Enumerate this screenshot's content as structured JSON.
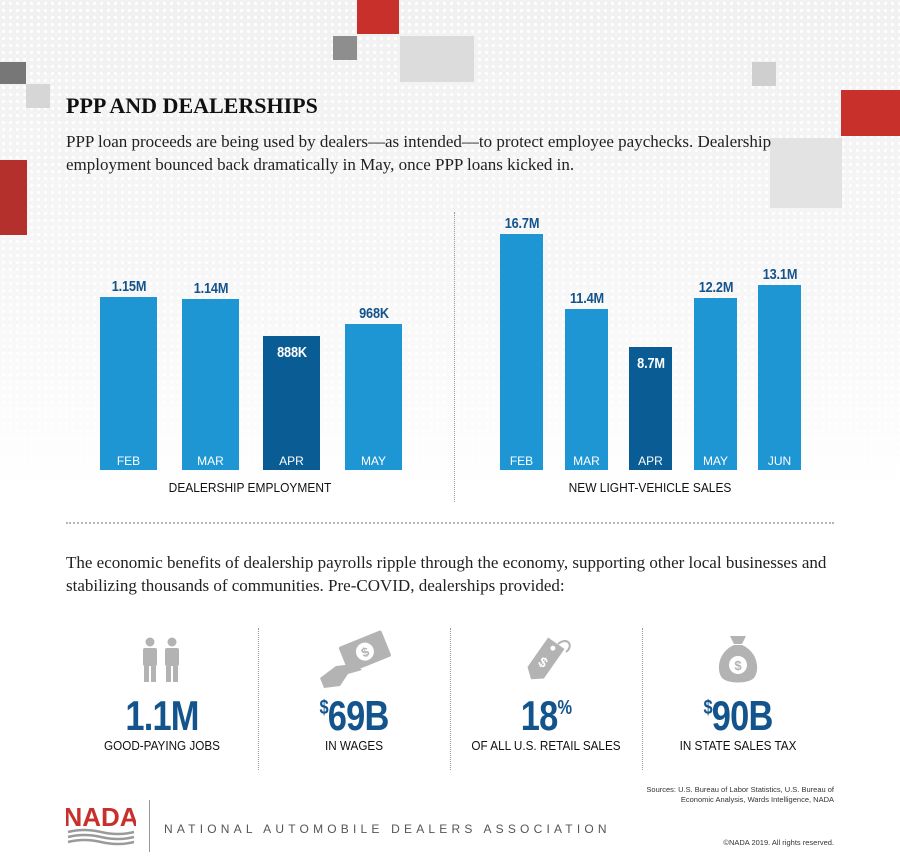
{
  "header": {
    "title": "PPP AND DEALERSHIPS",
    "subtitle": "PPP loan proceeds are being used by dealers—as intended—to protect employee paychecks. Dealership employment bounced back dramatically in May, once PPP loans kicked in."
  },
  "colors": {
    "bar": "#1e96d3",
    "bar_highlight": "#0a5c95",
    "stat_blue": "#13548c",
    "accent_red": "#c8302c",
    "icon_gray": "#b3b3b3"
  },
  "chart_data": [
    {
      "type": "bar",
      "title": "DEALERSHIP EMPLOYMENT",
      "categories": [
        "FEB",
        "MAR",
        "APR",
        "MAY"
      ],
      "values": [
        1150000,
        1140000,
        888000,
        968000
      ],
      "value_labels": [
        "1.15M",
        "1.14M",
        "888K",
        "968K"
      ],
      "highlight_index": 2,
      "ylim": [
        0,
        1150000
      ],
      "grid": false
    },
    {
      "type": "bar",
      "title": "NEW LIGHT-VEHICLE SALES",
      "categories": [
        "FEB",
        "MAR",
        "APR",
        "MAY",
        "JUN"
      ],
      "values": [
        16.7,
        11.4,
        8.7,
        12.2,
        13.1
      ],
      "value_labels": [
        "16.7M",
        "11.4M",
        "8.7M",
        "12.2M",
        "13.1M"
      ],
      "highlight_index": 2,
      "ylim": [
        0,
        16.7
      ],
      "grid": false
    }
  ],
  "intro": "The economic benefits of dealership payrolls ripple through the economy, supporting other local businesses and stabilizing thousands of communities. Pre-COVID, dealerships provided:",
  "stats": [
    {
      "icon": "people-icon",
      "prefix": "",
      "value": "1.1M",
      "suffix": "",
      "label": "GOOD-PAYING JOBS"
    },
    {
      "icon": "money-hand-icon",
      "prefix": "$",
      "value": "69B",
      "suffix": "",
      "label": "IN WAGES"
    },
    {
      "icon": "price-tag-icon",
      "prefix": "",
      "value": "18",
      "suffix": "%",
      "label": "OF ALL U.S. RETAIL SALES"
    },
    {
      "icon": "money-bag-icon",
      "prefix": "$",
      "value": "90B",
      "suffix": "",
      "label": "IN STATE SALES TAX"
    }
  ],
  "footer": {
    "sources": "Sources: U.S. Bureau of Labor Statistics, U.S. Bureau of Economic Analysis, Wards Intelligence, NADA",
    "logo_text": "NADA",
    "association": "NATIONAL AUTOMOBILE DEALERS ASSOCIATION",
    "copyright": "©NADA 2019. All rights reserved."
  }
}
